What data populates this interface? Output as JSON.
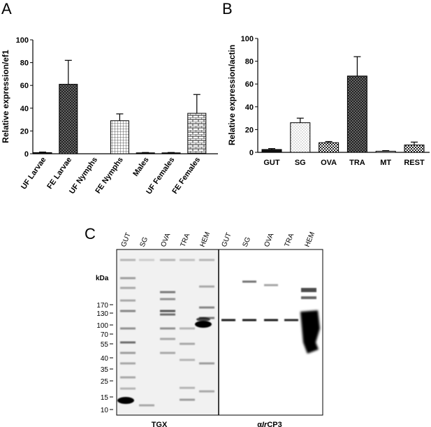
{
  "panels": {
    "a": "A",
    "b": "B",
    "c": "C"
  },
  "chart_data": [
    {
      "type": "bar",
      "ylabel": "Relative expression/ef1",
      "ylim": [
        0,
        100
      ],
      "yticks": [
        0,
        20,
        40,
        60,
        80,
        100
      ],
      "categories": [
        "UF Larvae",
        "FE Larvae",
        "UF Nymphs",
        "FE Nymphs",
        "Males",
        "UF Females",
        "FE Females"
      ],
      "values": [
        1,
        61,
        0,
        29,
        0.8,
        0.8,
        35.5
      ],
      "errors": [
        0.5,
        21,
        0,
        6,
        0.3,
        0.3,
        16.5
      ],
      "patterns": [
        "solid",
        "dots-dark",
        "none",
        "grid",
        "solid",
        "solid",
        "bricks"
      ]
    },
    {
      "type": "bar",
      "ylabel": "Relative expression/actin",
      "ylim": [
        0,
        100
      ],
      "yticks": [
        0,
        20,
        40,
        60,
        80,
        100
      ],
      "categories": [
        "GUT",
        "SG",
        "OVA",
        "TRA",
        "MT",
        "REST"
      ],
      "values": [
        2.5,
        26,
        8.5,
        67,
        1,
        6.5
      ],
      "errors": [
        0.8,
        4,
        1,
        17,
        0.5,
        2.5
      ],
      "patterns": [
        "solid",
        "dots-light",
        "checker",
        "dots-dark",
        "none",
        "checker"
      ]
    },
    {
      "type": "blot",
      "kda_label": "kDa",
      "markers": [
        "170",
        "130",
        "100",
        "70",
        "55",
        "40",
        "35",
        "25",
        "15",
        "10"
      ],
      "lanes_left": [
        "GUT",
        "SG",
        "OVA",
        "TRA",
        "HEM"
      ],
      "lanes_right": [
        "GUT",
        "SG",
        "OVA",
        "TRA",
        "HEM"
      ],
      "label_left": "TGX",
      "label_right_prefix": "α",
      "label_right_italic": "Ir",
      "label_right_suffix": "CP3"
    }
  ]
}
